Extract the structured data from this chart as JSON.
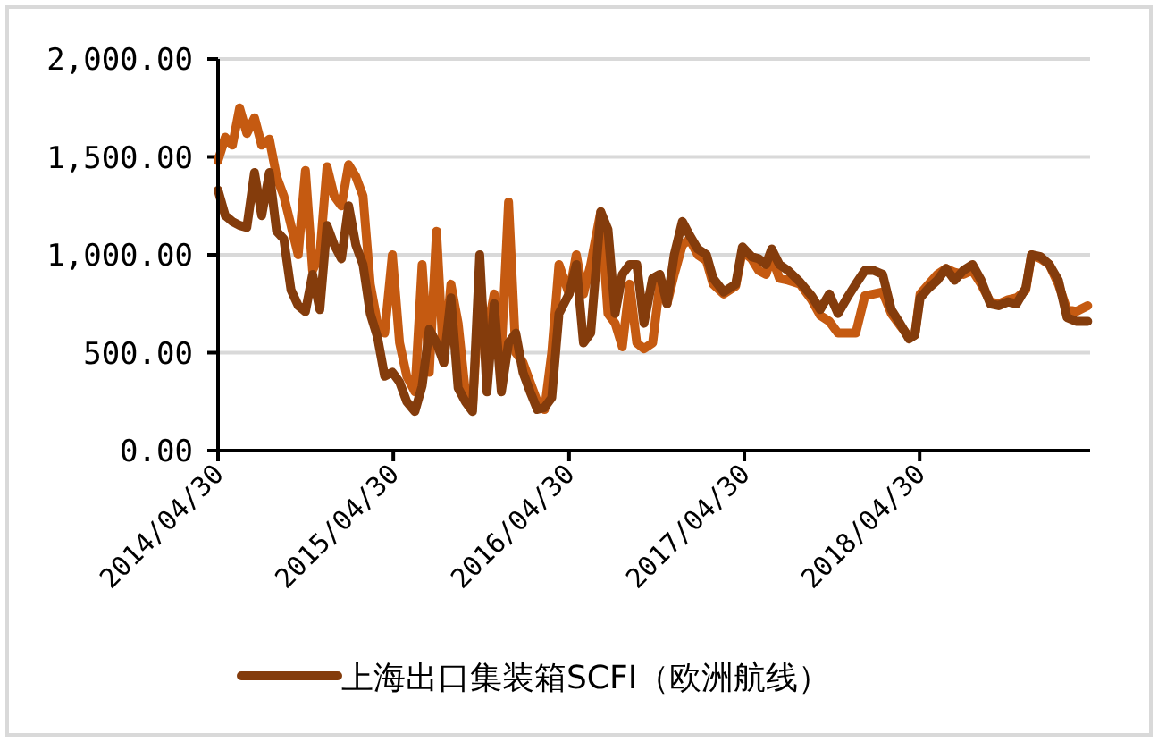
{
  "chart_data": {
    "type": "line",
    "xlim": [
      "2014-04-30",
      "2019-04-20"
    ],
    "xticks": [
      {
        "value": "2014-04-30",
        "label": "2014/04/30"
      },
      {
        "value": "2015-04-30",
        "label": "2015/04/30"
      },
      {
        "value": "2016-04-30",
        "label": "2016/04/30"
      },
      {
        "value": "2017-04-30",
        "label": "2017/04/30"
      },
      {
        "value": "2018-04-30",
        "label": "2018/04/30"
      }
    ],
    "ylim": [
      0,
      2000
    ],
    "yticks": [
      {
        "value": 0,
        "label": "0.00"
      },
      {
        "value": 500,
        "label": "500.00"
      },
      {
        "value": 1000,
        "label": "1,000.00"
      },
      {
        "value": 1500,
        "label": "1,500.00"
      },
      {
        "value": 2000,
        "label": "2,000.00"
      }
    ],
    "grid": "y",
    "legend": "bottom",
    "line_style": "solid",
    "marker": "none",
    "series": [
      {
        "name": null,
        "color": "#c55a11",
        "x": [
          "2014-04-30",
          "2014-05-15",
          "2014-05-30",
          "2014-06-14",
          "2014-06-29",
          "2014-07-15",
          "2014-07-30",
          "2014-08-15",
          "2014-08-30",
          "2014-09-14",
          "2014-09-29",
          "2014-10-14",
          "2014-10-29",
          "2014-11-13",
          "2014-11-28",
          "2014-12-13",
          "2014-12-28",
          "2015-01-12",
          "2015-01-27",
          "2015-02-11",
          "2015-02-26",
          "2015-03-13",
          "2015-03-28",
          "2015-04-12",
          "2015-04-28",
          "2015-05-13",
          "2015-05-28",
          "2015-06-14",
          "2015-06-29",
          "2015-07-14",
          "2015-07-29",
          "2015-08-13",
          "2015-08-28",
          "2015-09-12",
          "2015-09-27",
          "2015-10-12",
          "2015-10-27",
          "2015-11-11",
          "2015-11-26",
          "2015-12-11",
          "2015-12-26",
          "2016-01-10",
          "2016-01-25",
          "2016-02-09",
          "2016-02-24",
          "2016-03-10",
          "2016-03-25",
          "2016-04-09",
          "2016-04-30",
          "2016-05-15",
          "2016-05-30",
          "2016-06-14",
          "2016-07-05",
          "2016-07-20",
          "2016-08-04",
          "2016-08-19",
          "2016-09-03",
          "2016-09-18",
          "2016-10-03",
          "2016-10-21",
          "2016-11-05",
          "2016-11-20",
          "2016-12-05",
          "2016-12-22",
          "2017-01-06",
          "2017-01-23",
          "2017-02-10",
          "2017-02-24",
          "2017-03-18",
          "2017-04-12",
          "2017-04-26",
          "2017-05-15",
          "2017-05-30",
          "2017-06-14",
          "2017-06-26",
          "2017-07-12",
          "2017-07-30",
          "2017-08-24",
          "2017-09-17",
          "2017-10-05",
          "2017-10-24",
          "2017-11-11",
          "2017-11-30",
          "2017-12-18",
          "2018-01-06",
          "2018-01-24",
          "2018-02-12",
          "2018-03-02",
          "2018-03-20",
          "2018-04-08",
          "2018-04-20",
          "2018-05-01",
          "2018-05-19",
          "2018-06-06",
          "2018-06-24",
          "2018-07-12",
          "2018-07-30",
          "2018-08-18",
          "2018-09-05",
          "2018-09-24",
          "2018-10-12",
          "2018-10-31",
          "2018-11-18",
          "2018-12-07",
          "2018-12-19",
          "2019-01-07",
          "2019-01-25",
          "2019-02-13",
          "2019-03-03",
          "2019-03-22",
          "2019-04-15"
        ],
        "values": [
          1480,
          1600,
          1560,
          1750,
          1620,
          1700,
          1560,
          1590,
          1400,
          1300,
          1150,
          1000,
          1430,
          920,
          1000,
          1450,
          1300,
          1250,
          1460,
          1400,
          1300,
          850,
          650,
          600,
          1000,
          550,
          380,
          300,
          950,
          400,
          1120,
          450,
          850,
          650,
          300,
          220,
          820,
          600,
          800,
          500,
          1270,
          500,
          450,
          350,
          250,
          210,
          500,
          950,
          800,
          1000,
          800,
          950,
          1220,
          700,
          650,
          530,
          850,
          550,
          520,
          550,
          850,
          750,
          900,
          1050,
          1080,
          1000,
          970,
          850,
          800,
          840,
          1020,
          980,
          920,
          900,
          990,
          880,
          870,
          850,
          770,
          690,
          660,
          600,
          600,
          600,
          790,
          800,
          810,
          700,
          640,
          580,
          590,
          800,
          850,
          900,
          930,
          910,
          900,
          920,
          850,
          760,
          750,
          770,
          780,
          820,
          1000,
          980,
          950,
          850,
          720,
          710,
          740
        ]
      },
      {
        "name": "上海出口集装箱SCFI（欧洲航线）",
        "color": "#843c0c",
        "x": [
          "2014-04-30",
          "2014-05-15",
          "2014-05-30",
          "2014-06-14",
          "2014-06-29",
          "2014-07-15",
          "2014-07-30",
          "2014-08-15",
          "2014-08-30",
          "2014-09-14",
          "2014-09-29",
          "2014-10-14",
          "2014-10-29",
          "2014-11-13",
          "2014-11-28",
          "2014-12-13",
          "2014-12-28",
          "2015-01-12",
          "2015-01-27",
          "2015-02-11",
          "2015-02-26",
          "2015-03-13",
          "2015-03-28",
          "2015-04-12",
          "2015-04-28",
          "2015-05-13",
          "2015-05-28",
          "2015-06-14",
          "2015-06-29",
          "2015-07-14",
          "2015-07-29",
          "2015-08-13",
          "2015-08-28",
          "2015-09-12",
          "2015-09-27",
          "2015-10-12",
          "2015-10-27",
          "2015-11-11",
          "2015-11-26",
          "2015-12-11",
          "2015-12-26",
          "2016-01-10",
          "2016-01-25",
          "2016-02-09",
          "2016-02-24",
          "2016-03-10",
          "2016-03-25",
          "2016-04-09",
          "2016-04-30",
          "2016-05-15",
          "2016-05-30",
          "2016-06-14",
          "2016-07-05",
          "2016-07-20",
          "2016-08-04",
          "2016-08-19",
          "2016-09-03",
          "2016-09-18",
          "2016-10-03",
          "2016-10-21",
          "2016-11-05",
          "2016-11-20",
          "2016-12-05",
          "2016-12-22",
          "2017-01-06",
          "2017-01-23",
          "2017-02-10",
          "2017-02-24",
          "2017-03-18",
          "2017-04-12",
          "2017-04-26",
          "2017-05-15",
          "2017-05-30",
          "2017-06-14",
          "2017-06-26",
          "2017-07-12",
          "2017-07-30",
          "2017-08-24",
          "2017-09-17",
          "2017-10-05",
          "2017-10-24",
          "2017-11-11",
          "2017-11-30",
          "2017-12-18",
          "2018-01-06",
          "2018-01-24",
          "2018-02-12",
          "2018-03-02",
          "2018-03-20",
          "2018-04-08",
          "2018-04-20",
          "2018-05-01",
          "2018-05-19",
          "2018-06-06",
          "2018-06-24",
          "2018-07-12",
          "2018-07-30",
          "2018-08-18",
          "2018-09-05",
          "2018-09-24",
          "2018-10-12",
          "2018-10-31",
          "2018-11-18",
          "2018-12-07",
          "2018-12-19",
          "2019-01-07",
          "2019-01-25",
          "2019-02-13",
          "2019-03-03",
          "2019-03-22",
          "2019-04-15"
        ],
        "values": [
          1330,
          1200,
          1170,
          1150,
          1140,
          1420,
          1200,
          1420,
          1120,
          1080,
          820,
          740,
          710,
          900,
          720,
          1150,
          1050,
          980,
          1250,
          1050,
          950,
          700,
          580,
          380,
          400,
          350,
          250,
          200,
          330,
          620,
          550,
          450,
          780,
          320,
          250,
          200,
          1000,
          300,
          750,
          300,
          550,
          600,
          400,
          300,
          210,
          220,
          270,
          700,
          800,
          950,
          550,
          600,
          1220,
          1130,
          700,
          900,
          950,
          950,
          650,
          880,
          900,
          750,
          1000,
          1170,
          1100,
          1030,
          1000,
          880,
          810,
          850,
          1040,
          990,
          980,
          950,
          1030,
          950,
          920,
          860,
          790,
          720,
          800,
          700,
          780,
          850,
          920,
          920,
          900,
          720,
          650,
          570,
          590,
          780,
          830,
          870,
          930,
          870,
          920,
          950,
          870,
          750,
          740,
          760,
          750,
          830,
          1000,
          990,
          950,
          870,
          680,
          660,
          660
        ]
      }
    ]
  }
}
